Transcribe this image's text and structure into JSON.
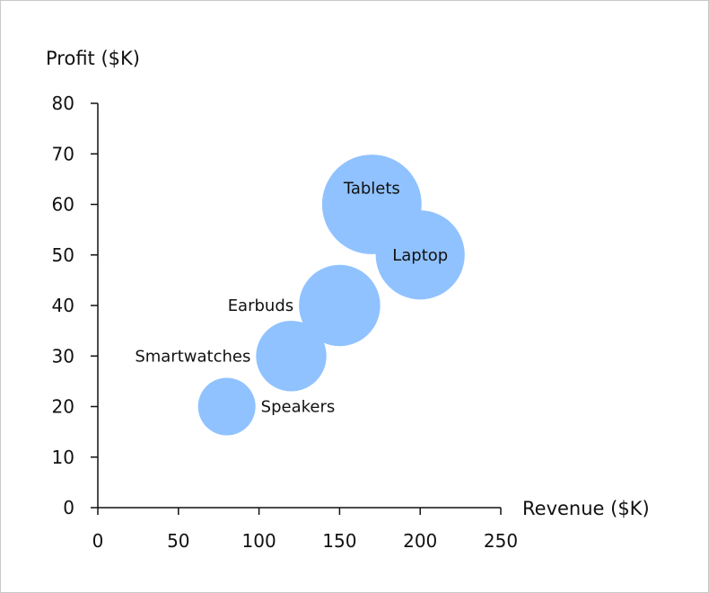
{
  "chart_data": {
    "type": "bubble",
    "title": "",
    "xlabel": "Revenue ($K)",
    "ylabel": "Profit ($K)",
    "xlim": [
      0,
      250
    ],
    "ylim": [
      0,
      80
    ],
    "xticks": [
      0,
      50,
      100,
      150,
      200,
      250
    ],
    "yticks": [
      0,
      10,
      20,
      30,
      40,
      50,
      60,
      70,
      80
    ],
    "grid": false,
    "legend": "none",
    "bubble_color": "#90c2ff",
    "points": [
      {
        "label": "Speakers",
        "x": 80,
        "y": 20,
        "size": 1,
        "label_side": "right"
      },
      {
        "label": "Smartwatches",
        "x": 120,
        "y": 30,
        "size": 1.5,
        "label_side": "left"
      },
      {
        "label": "Earbuds",
        "x": 150,
        "y": 40,
        "size": 2,
        "label_side": "left"
      },
      {
        "label": "Tablets",
        "x": 170,
        "y": 60,
        "size": 3,
        "label_side": "inside-top"
      },
      {
        "label": "Laptop",
        "x": 200,
        "y": 50,
        "size": 2.4,
        "label_side": "inside"
      }
    ]
  }
}
